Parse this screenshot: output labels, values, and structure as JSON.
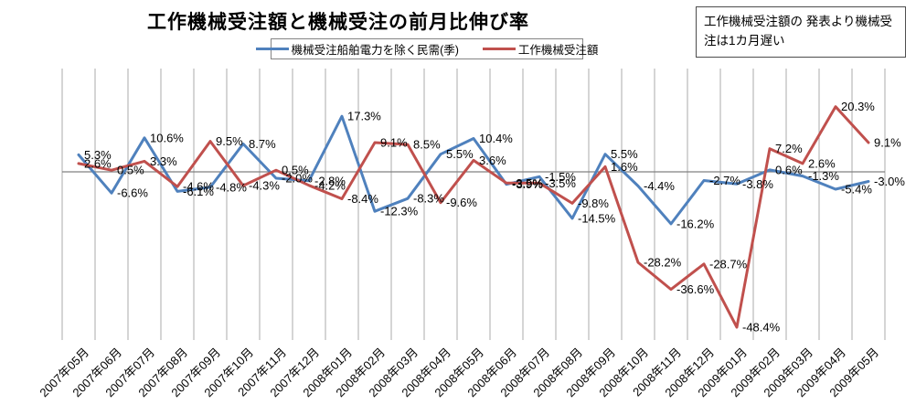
{
  "title": "工作機械受注額と機械受注の前月比伸び率",
  "annotation": "工作機械受注額の 発表より機械受注は1カ月遅い",
  "chart_data": {
    "type": "line",
    "categories": [
      "2007年05月",
      "2007年06月",
      "2007年07月",
      "2007年08月",
      "2007年09月",
      "2007年10月",
      "2007年11月",
      "2007年12月",
      "2008年01月",
      "2008年02月",
      "2008年03月",
      "2008年04月",
      "2008年05月",
      "2008年06月",
      "2008年07月",
      "2008年08月",
      "2008年09月",
      "2008年10月",
      "2008年11月",
      "2008年12月",
      "2009年01月",
      "2009年02月",
      "2009年03月",
      "2009年04月",
      "2009年05月"
    ],
    "series": [
      {
        "name": "機械受注船舶電力を除く民需(季)",
        "color": "#4F81BD",
        "values": [
          5.3,
          -6.6,
          10.6,
          -6.1,
          -4.8,
          8.7,
          -2.0,
          -2.8,
          17.3,
          -12.3,
          -8.3,
          5.5,
          10.4,
          -3.9,
          -1.5,
          -14.5,
          5.5,
          -4.4,
          -16.2,
          -2.7,
          -3.8,
          0.6,
          -1.3,
          -5.4,
          -3.0
        ]
      },
      {
        "name": "工作機械受注額",
        "color": "#C0504D",
        "values": [
          2.6,
          0.5,
          3.3,
          -4.6,
          9.5,
          -4.3,
          0.5,
          -4.2,
          -8.4,
          9.1,
          8.5,
          -9.6,
          3.6,
          -3.5,
          -3.5,
          -9.8,
          1.6,
          -28.2,
          -36.6,
          -28.7,
          -48.4,
          7.2,
          2.6,
          20.3,
          9.1
        ]
      }
    ],
    "title": "工作機械受注額と機械受注の前月比伸び率",
    "xlabel": "",
    "ylabel": "",
    "ylim": [
      -51,
      32
    ],
    "grid": "vertical-only",
    "legend_position": "top-center",
    "data_labels": "all points, format 0.0%",
    "gridline_color": "#ABABAB",
    "axis_color": "#808080",
    "label_color": "#000000"
  }
}
